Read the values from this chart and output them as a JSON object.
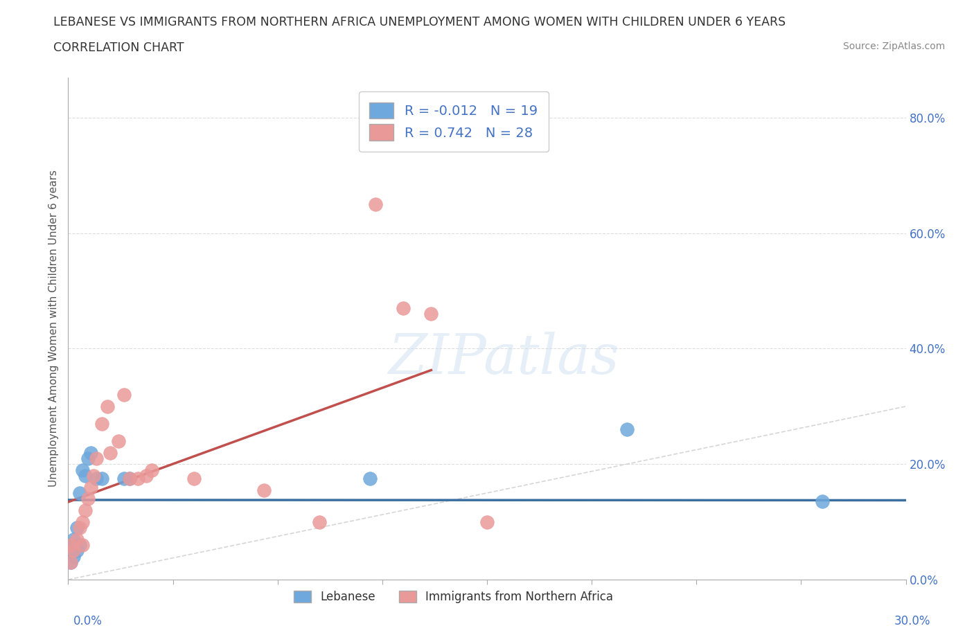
{
  "title_line1": "LEBANESE VS IMMIGRANTS FROM NORTHERN AFRICA UNEMPLOYMENT AMONG WOMEN WITH CHILDREN UNDER 6 YEARS",
  "title_line2": "CORRELATION CHART",
  "source": "Source: ZipAtlas.com",
  "ylabel": "Unemployment Among Women with Children Under 6 years",
  "watermark": "ZIPatlas",
  "xlim": [
    0.0,
    0.3
  ],
  "ylim": [
    0.0,
    0.87
  ],
  "yticks": [
    0.0,
    0.2,
    0.4,
    0.6,
    0.8
  ],
  "ytick_labels": [
    "0.0%",
    "20.0%",
    "40.0%",
    "60.0%",
    "80.0%"
  ],
  "lebanese_color": "#6fa8dc",
  "lebanese_line_color": "#3a6fa0",
  "northern_africa_color": "#ea9999",
  "northern_africa_line_color": "#c0504d",
  "lebanese_R": -0.012,
  "lebanese_N": 19,
  "northern_africa_R": 0.742,
  "northern_africa_N": 28,
  "lebanese_x": [
    0.001,
    0.001,
    0.002,
    0.002,
    0.003,
    0.003,
    0.004,
    0.004,
    0.005,
    0.006,
    0.007,
    0.008,
    0.01,
    0.012,
    0.02,
    0.022,
    0.108,
    0.2,
    0.27
  ],
  "lebanese_y": [
    0.03,
    0.06,
    0.04,
    0.07,
    0.05,
    0.09,
    0.06,
    0.15,
    0.19,
    0.18,
    0.21,
    0.22,
    0.175,
    0.175,
    0.175,
    0.175,
    0.175,
    0.26,
    0.135
  ],
  "northern_africa_x": [
    0.001,
    0.001,
    0.002,
    0.003,
    0.004,
    0.005,
    0.005,
    0.006,
    0.007,
    0.008,
    0.009,
    0.01,
    0.012,
    0.014,
    0.015,
    0.018,
    0.02,
    0.022,
    0.025,
    0.028,
    0.03,
    0.045,
    0.07,
    0.09,
    0.11,
    0.12,
    0.13,
    0.15
  ],
  "northern_africa_y": [
    0.03,
    0.06,
    0.05,
    0.07,
    0.09,
    0.06,
    0.1,
    0.12,
    0.14,
    0.16,
    0.18,
    0.21,
    0.27,
    0.3,
    0.22,
    0.24,
    0.32,
    0.175,
    0.175,
    0.18,
    0.19,
    0.175,
    0.155,
    0.1,
    0.65,
    0.47,
    0.46,
    0.1
  ],
  "background_color": "#ffffff",
  "grid_color": "#dddddd",
  "tick_label_color": "#4472c4",
  "axis_label_color": "#555555",
  "title_color": "#333333",
  "legend_label_color": "#4472c4",
  "diagonal_color": "#cccccc"
}
